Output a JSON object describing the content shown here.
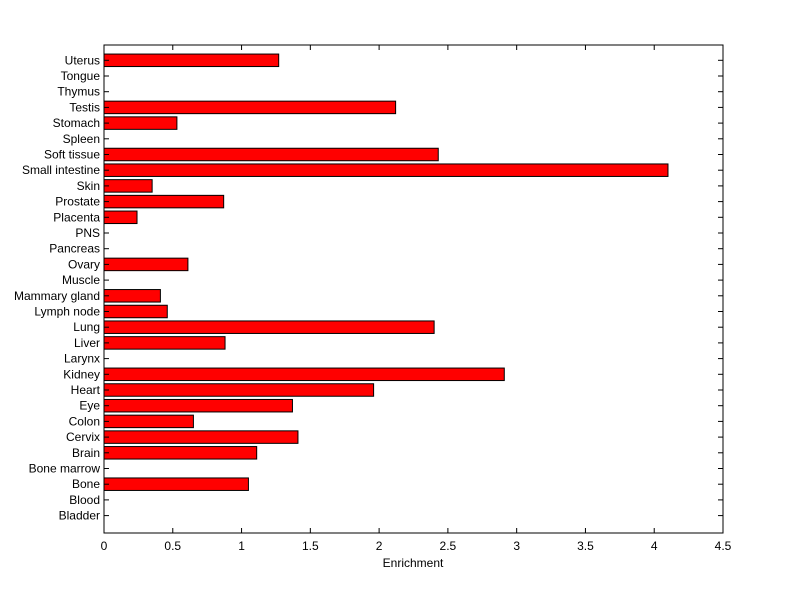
{
  "chart_data": {
    "type": "bar",
    "orientation": "horizontal",
    "title": "",
    "xlabel": "Enrichment",
    "ylabel": "",
    "xlim": [
      0,
      4.5
    ],
    "xticks": [
      0,
      0.5,
      1,
      1.5,
      2,
      2.5,
      3,
      3.5,
      4,
      4.5
    ],
    "xtick_labels": [
      "0",
      "0.5",
      "1",
      "1.5",
      "2",
      "2.5",
      "3",
      "3.5",
      "4",
      "4.5"
    ],
    "grid": false,
    "legend": "none",
    "bar_color": "#ff0000",
    "bar_edge_color": "#000000",
    "categories": [
      "Uterus",
      "Tongue",
      "Thymus",
      "Testis",
      "Stomach",
      "Spleen",
      "Soft tissue",
      "Small intestine",
      "Skin",
      "Prostate",
      "Placenta",
      "PNS",
      "Pancreas",
      "Ovary",
      "Muscle",
      "Mammary gland",
      "Lymph node",
      "Lung",
      "Liver",
      "Larynx",
      "Kidney",
      "Heart",
      "Eye",
      "Colon",
      "Cervix",
      "Brain",
      "Bone marrow",
      "Bone",
      "Blood",
      "Bladder"
    ],
    "values": [
      1.27,
      0,
      0,
      2.12,
      0.53,
      0,
      2.43,
      4.1,
      0.35,
      0.87,
      0.24,
      0,
      0,
      0.61,
      0,
      0.41,
      0.46,
      2.4,
      0.88,
      0,
      2.91,
      1.96,
      1.37,
      0.65,
      1.41,
      1.11,
      0,
      1.05,
      0,
      0
    ]
  }
}
